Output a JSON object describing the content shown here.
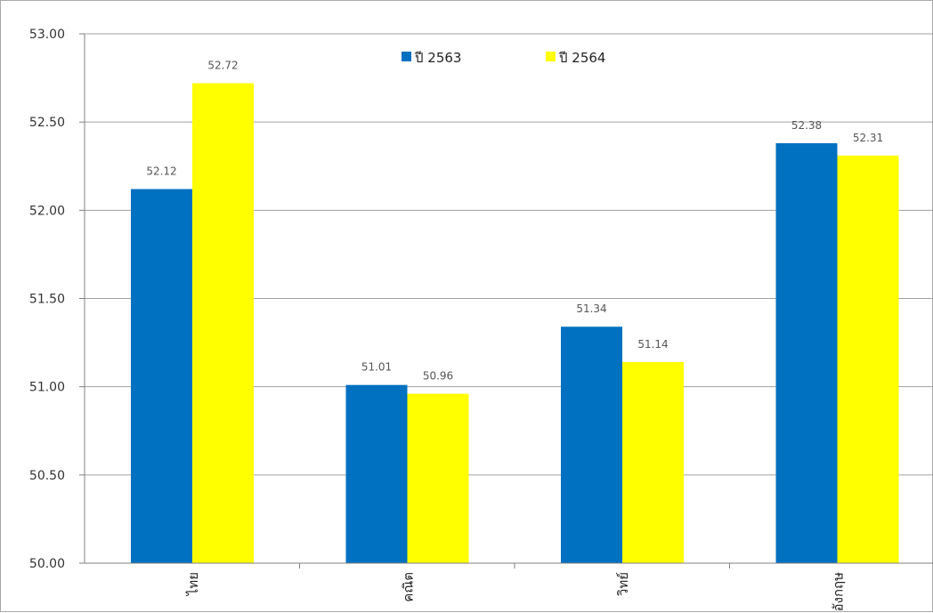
{
  "chart_data": {
    "type": "bar",
    "title": "",
    "xlabel": "",
    "ylabel": "",
    "categories": [
      "ไทย",
      "คณิต",
      "วิทย์",
      "อังกฤษ"
    ],
    "series": [
      {
        "name": "ปี 2563",
        "color": "#0070c0",
        "values": [
          52.12,
          51.01,
          51.34,
          52.38
        ],
        "labels": [
          "52.12",
          "51.01",
          "51.34",
          "52.38"
        ]
      },
      {
        "name": "ปี 2564",
        "color": "#ffff00",
        "values": [
          52.72,
          50.96,
          51.14,
          52.31
        ],
        "labels": [
          "52.72",
          "50.96",
          "51.14",
          "52.31"
        ]
      }
    ],
    "ylim": [
      50.0,
      53.0
    ],
    "yticks": [
      50.0,
      50.5,
      51.0,
      51.5,
      52.0,
      52.5,
      53.0
    ],
    "ytick_labels": [
      "50.00",
      "50.50",
      "51.00",
      "51.50",
      "52.00",
      "52.50",
      "53.00"
    ],
    "grid": true,
    "legend": "top-center"
  }
}
